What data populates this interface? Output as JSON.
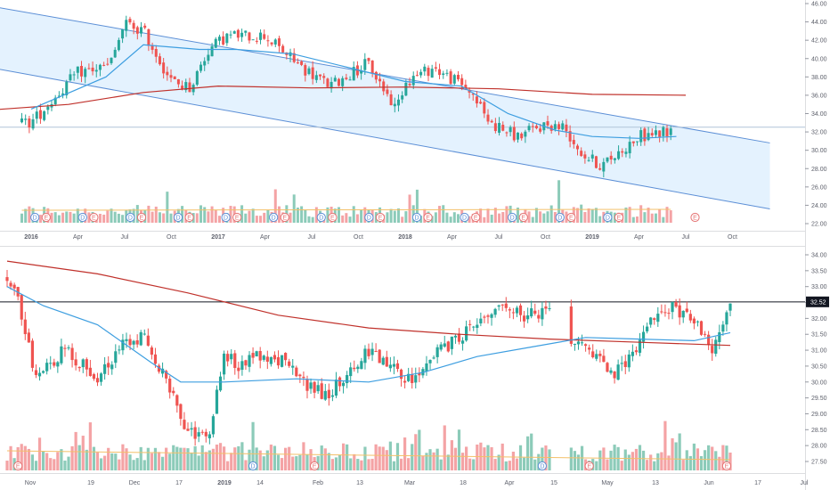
{
  "chart_data": [
    {
      "type": "candlestick",
      "panel": "top",
      "description_of_overlays": [
        "descending regression channel",
        "50-day moving average",
        "200-day moving average",
        "volume histogram",
        "dividend/earnings event markers"
      ],
      "x_axis": {
        "ticks": [
          "2016",
          "Apr",
          "Jul",
          "Oct",
          "2017",
          "Apr",
          "Jul",
          "Oct",
          "2018",
          "Apr",
          "Jul",
          "Oct",
          "2019",
          "Apr",
          "Jul",
          "Oct"
        ]
      },
      "y_axis": {
        "range": [
          22,
          46
        ],
        "ticks": [
          "46.00",
          "44.00",
          "42.00",
          "40.00",
          "38.00",
          "36.00",
          "34.00",
          "32.00",
          "30.00",
          "28.00",
          "26.00",
          "24.00",
          "22.00"
        ]
      },
      "horizontal_line": 32.52,
      "channel": {
        "upper": [
          [
            2015.65,
            46.2
          ],
          [
            2019.95,
            30.8
          ]
        ],
        "lower": [
          [
            2015.65,
            39.5
          ],
          [
            2019.95,
            23.6
          ]
        ]
      },
      "price_path": [
        [
          2016.0,
          33.0
        ],
        [
          2016.25,
          38.5
        ],
        [
          2016.42,
          39.2
        ],
        [
          2016.5,
          43.8
        ],
        [
          2016.6,
          43.0
        ],
        [
          2016.75,
          37.5
        ],
        [
          2016.85,
          36.8
        ],
        [
          2016.95,
          41.0
        ],
        [
          2017.05,
          42.5
        ],
        [
          2017.25,
          42.5
        ],
        [
          2017.45,
          39.0
        ],
        [
          2017.6,
          37.0
        ],
        [
          2017.8,
          39.5
        ],
        [
          2017.95,
          34.5
        ],
        [
          2018.0,
          37.5
        ],
        [
          2018.15,
          39.0
        ],
        [
          2018.35,
          36.5
        ],
        [
          2018.45,
          33.0
        ],
        [
          2018.6,
          31.5
        ],
        [
          2018.75,
          32.8
        ],
        [
          2018.85,
          32.5
        ],
        [
          2018.95,
          29.5
        ],
        [
          2019.05,
          28.3
        ],
        [
          2019.25,
          31.5
        ],
        [
          2019.4,
          32.0
        ]
      ],
      "ma50_path": [
        [
          2016.0,
          34.5
        ],
        [
          2016.4,
          38.0
        ],
        [
          2016.6,
          41.5
        ],
        [
          2016.9,
          41.0
        ],
        [
          2017.1,
          41.0
        ],
        [
          2017.4,
          40.5
        ],
        [
          2017.7,
          39.0
        ],
        [
          2018.0,
          37.5
        ],
        [
          2018.3,
          37.0
        ],
        [
          2018.55,
          34.0
        ],
        [
          2018.8,
          32.2
        ],
        [
          2019.0,
          31.5
        ],
        [
          2019.25,
          31.3
        ],
        [
          2019.45,
          31.5
        ]
      ],
      "ma200_path": [
        [
          2015.65,
          34.2
        ],
        [
          2016.2,
          35.0
        ],
        [
          2016.6,
          36.3
        ],
        [
          2017.0,
          37.0
        ],
        [
          2017.5,
          36.8
        ],
        [
          2018.0,
          36.9
        ],
        [
          2018.5,
          36.7
        ],
        [
          2019.0,
          36.1
        ],
        [
          2019.5,
          36.0
        ]
      ],
      "event_markers": [
        "D",
        "E",
        "D",
        "E",
        "D",
        "E",
        "D",
        "E",
        "D",
        "E",
        "D",
        "E",
        "D",
        "E",
        "D",
        "E",
        "D",
        "E",
        "D",
        "E",
        "D",
        "E",
        "D",
        "E",
        "D",
        "E",
        "E"
      ]
    },
    {
      "type": "candlestick",
      "panel": "bottom",
      "description_of_overlays": [
        "50-day moving average",
        "200-day moving average",
        "volume histogram",
        "dividend/earnings event markers"
      ],
      "x_axis": {
        "ticks": [
          "Nov",
          "19",
          "Dec",
          "17",
          "2019",
          "14",
          "Feb",
          "13",
          "Mar",
          "18",
          "Apr",
          "15",
          "May",
          "13",
          "Jun",
          "17",
          "Jul"
        ]
      },
      "y_axis": {
        "range": [
          27.3,
          34.2
        ],
        "ticks": [
          "34.00",
          "33.50",
          "33.00",
          "32.50",
          "32.00",
          "31.50",
          "31.00",
          "30.50",
          "30.00",
          "29.50",
          "29.00",
          "28.50",
          "28.00",
          "27.50"
        ]
      },
      "last_price": "32.52",
      "horizontal_line": 32.52,
      "price_path": [
        [
          0,
          33.3
        ],
        [
          3,
          32.5
        ],
        [
          8,
          30.2
        ],
        [
          16,
          31.0
        ],
        [
          25,
          30.2
        ],
        [
          32,
          31.2
        ],
        [
          38,
          31.5
        ],
        [
          44,
          30.0
        ],
        [
          50,
          28.3
        ],
        [
          56,
          28.5
        ],
        [
          60,
          31.0
        ],
        [
          64,
          30.5
        ],
        [
          70,
          30.8
        ],
        [
          76,
          30.7
        ],
        [
          84,
          29.8
        ],
        [
          88,
          29.6
        ],
        [
          94,
          30.2
        ],
        [
          100,
          31.0
        ],
        [
          106,
          30.5
        ],
        [
          112,
          30.0
        ],
        [
          118,
          30.8
        ],
        [
          124,
          31.3
        ],
        [
          130,
          31.8
        ],
        [
          136,
          32.4
        ],
        [
          142,
          32.1
        ],
        [
          146,
          32.1
        ],
        [
          150,
          32.1
        ],
        [
          156,
          31.2
        ],
        [
          160,
          31.0
        ],
        [
          164,
          30.6
        ],
        [
          168,
          30.2
        ],
        [
          172,
          30.8
        ],
        [
          176,
          31.5
        ],
        [
          180,
          32.2
        ],
        [
          184,
          32.3
        ],
        [
          188,
          32.0
        ],
        [
          192,
          31.6
        ],
        [
          195,
          31.0
        ],
        [
          197,
          31.5
        ],
        [
          200,
          32.6
        ]
      ],
      "ma50_path": [
        [
          0,
          33.0
        ],
        [
          10,
          32.4
        ],
        [
          25,
          31.8
        ],
        [
          40,
          30.6
        ],
        [
          48,
          30.0
        ],
        [
          60,
          30.0
        ],
        [
          80,
          30.1
        ],
        [
          100,
          30.0
        ],
        [
          115,
          30.3
        ],
        [
          130,
          30.8
        ],
        [
          145,
          31.1
        ],
        [
          160,
          31.4
        ],
        [
          175,
          31.35
        ],
        [
          190,
          31.3
        ],
        [
          200,
          31.55
        ]
      ],
      "ma200_path": [
        [
          0,
          33.8
        ],
        [
          25,
          33.4
        ],
        [
          50,
          32.8
        ],
        [
          75,
          32.1
        ],
        [
          100,
          31.7
        ],
        [
          125,
          31.5
        ],
        [
          150,
          31.35
        ],
        [
          175,
          31.25
        ],
        [
          200,
          31.15
        ]
      ],
      "event_markers": [
        "E",
        "D",
        "E",
        "D",
        "E",
        "E"
      ]
    }
  ]
}
